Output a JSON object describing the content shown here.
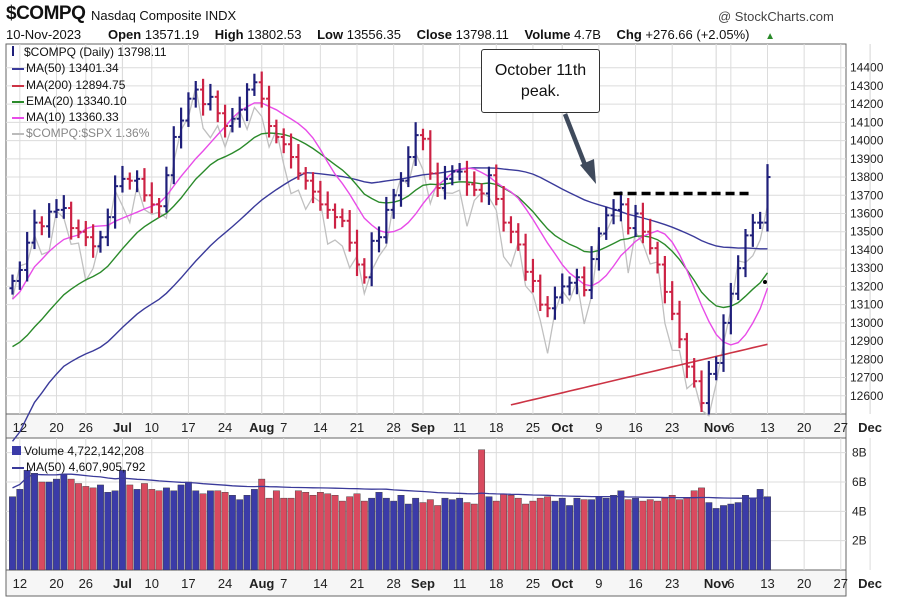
{
  "header": {
    "symbol": "$COMPQ",
    "description": "Nasdaq Composite INDX",
    "brand": "@ StockCharts.com",
    "date": "10-Nov-2023",
    "quote": [
      {
        "label": "Open",
        "value": "13571.19"
      },
      {
        "label": "High",
        "value": "13802.53"
      },
      {
        "label": "Low",
        "value": "13556.35"
      },
      {
        "label": "Close",
        "value": "13798.11"
      },
      {
        "label": "Volume",
        "value": "4.7B"
      },
      {
        "label": "Chg",
        "value": "+276.66 (+2.05%)"
      }
    ],
    "up_arrow": "▲"
  },
  "price_legend": [
    {
      "text": "$COMPQ (Daily) 13798.11",
      "color": "#222222",
      "icon": "bar-icon"
    },
    {
      "text": "MA(50) 13401.34",
      "color": "#3a3a9a"
    },
    {
      "text": "MA(200) 12894.75",
      "color": "#cc3344"
    },
    {
      "text": "EMA(20) 13340.10",
      "color": "#2a8a2a"
    },
    {
      "text": "MA(10) 13360.33",
      "color": "#e84ce8"
    },
    {
      "text": "$COMPQ:$SPX 1.36%",
      "color": "#aaaaaa"
    }
  ],
  "volume_legend": [
    {
      "text": "Volume 4,722,142,208",
      "color": "#222222"
    },
    {
      "text": "MA(50) 4,607,905,792",
      "color": "#3a3a9a"
    }
  ],
  "annotation": {
    "line1": "October 11th",
    "line2": "peak."
  },
  "colors": {
    "up": "#1f1f7a",
    "down": "#cc2244",
    "vol_up": "#3b3ba8",
    "vol_down": "#d94a5f",
    "ma50": "#3a3a9a",
    "ma200": "#cc3344",
    "ema20": "#2a8a2a",
    "ma10": "#e84ce8",
    "ratio": "#c0c0c0",
    "grid": "#dcdcdc"
  },
  "chart_data": {
    "type": "ohlc",
    "y_ticks": [
      12600,
      12700,
      12800,
      12900,
      13000,
      13100,
      13200,
      13300,
      13400,
      13500,
      13600,
      13700,
      13800,
      13900,
      14000,
      14100,
      14200,
      14300,
      14400
    ],
    "vol_ticks": [
      "8B",
      "6B",
      "4B",
      "2B"
    ],
    "vol_tick_values": [
      8,
      6,
      4,
      2
    ],
    "x_labels": [
      {
        "i": 1,
        "t": "12"
      },
      {
        "i": 6,
        "t": "20"
      },
      {
        "i": 10,
        "t": "26"
      },
      {
        "i": 15,
        "t": "Jul",
        "b": true
      },
      {
        "i": 19,
        "t": "10"
      },
      {
        "i": 24,
        "t": "17"
      },
      {
        "i": 29,
        "t": "24"
      },
      {
        "i": 34,
        "t": "Aug",
        "b": true
      },
      {
        "i": 37,
        "t": "7"
      },
      {
        "i": 42,
        "t": "14"
      },
      {
        "i": 47,
        "t": "21"
      },
      {
        "i": 52,
        "t": "28"
      },
      {
        "i": 56,
        "t": "Sep",
        "b": true
      },
      {
        "i": 61,
        "t": "11"
      },
      {
        "i": 66,
        "t": "18"
      },
      {
        "i": 71,
        "t": "25"
      },
      {
        "i": 75,
        "t": "Oct",
        "b": true
      },
      {
        "i": 80,
        "t": "9"
      },
      {
        "i": 85,
        "t": "16"
      },
      {
        "i": 90,
        "t": "23"
      },
      {
        "i": 96,
        "t": "Nov",
        "b": true
      },
      {
        "i": 98,
        "t": "6"
      },
      {
        "i": 103,
        "t": "13"
      },
      {
        "i": 108,
        "t": "20"
      },
      {
        "i": 113,
        "t": "27"
      },
      {
        "i": 117,
        "t": "Dec",
        "b": true
      }
    ],
    "closes": [
      13230,
      13290,
      13440,
      13550,
      13530,
      13610,
      13620,
      13630,
      13520,
      13500,
      13470,
      13420,
      13470,
      13580,
      13750,
      13790,
      13780,
      13790,
      13700,
      13650,
      13640,
      13810,
      14020,
      14110,
      14230,
      14280,
      14200,
      14240,
      14150,
      14080,
      14120,
      14170,
      14280,
      14320,
      14230,
      14080,
      14020,
      13980,
      13910,
      13820,
      13780,
      13720,
      13650,
      13620,
      13580,
      13560,
      13440,
      13320,
      13250,
      13450,
      13470,
      13620,
      13700,
      13780,
      13910,
      14030,
      14010,
      13820,
      13740,
      13790,
      13830,
      13830,
      13760,
      13730,
      13710,
      13810,
      13680,
      13550,
      13500,
      13430,
      13280,
      13230,
      13100,
      13080,
      13140,
      13200,
      13220,
      13250,
      13180,
      13350,
      13490,
      13590,
      13620,
      13650,
      13520,
      13600,
      13500,
      13410,
      13320,
      13170,
      13050,
      12910,
      12760,
      12680,
      12560,
      12720,
      12780,
      13000,
      13160,
      13300,
      13480,
      13550,
      13550,
      13800
    ],
    "volume_bn": [
      5.0,
      5.5,
      6.8,
      6.6,
      6.0,
      6.0,
      6.2,
      6.5,
      6.2,
      5.9,
      5.7,
      5.6,
      5.8,
      5.3,
      5.4,
      6.8,
      5.8,
      5.5,
      5.9,
      5.5,
      5.4,
      5.6,
      5.4,
      5.8,
      6.0,
      5.4,
      5.2,
      5.4,
      5.4,
      5.3,
      5.1,
      4.8,
      5.1,
      5.5,
      6.2,
      4.9,
      5.4,
      4.9,
      4.9,
      5.4,
      5.3,
      5.1,
      5.3,
      5.2,
      5.1,
      4.7,
      5.0,
      5.2,
      4.7,
      4.9,
      5.3,
      4.9,
      4.7,
      5.1,
      4.5,
      4.9,
      4.6,
      4.8,
      4.4,
      4.9,
      4.8,
      4.9,
      4.6,
      4.5,
      8.2,
      5.0,
      4.7,
      5.2,
      5.1,
      4.9,
      4.5,
      4.7,
      4.9,
      5.0,
      4.7,
      4.9,
      4.4,
      4.9,
      4.8,
      4.8,
      5.0,
      4.9,
      5.1,
      5.4,
      4.8,
      4.9,
      4.7,
      4.8,
      4.7,
      4.9,
      5.1,
      4.8,
      4.9,
      5.4,
      5.6,
      4.6,
      4.2,
      4.4,
      4.5,
      4.6,
      5.1,
      4.9,
      5.5,
      5.0
    ],
    "ylim": [
      12500,
      14530
    ],
    "vol_ylim": [
      0,
      9
    ],
    "peak_close": 13710
  }
}
